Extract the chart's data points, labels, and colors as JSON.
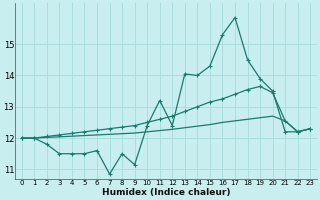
{
  "title": "",
  "xlabel": "Humidex (Indice chaleur)",
  "bg_color": "#c8eef0",
  "grid_color": "#aadddd",
  "line_color": "#1a7a6e",
  "xlim": [
    -0.5,
    23.5
  ],
  "ylim": [
    10.7,
    16.3
  ],
  "yticks": [
    11,
    12,
    13,
    14,
    15
  ],
  "xticks": [
    0,
    1,
    2,
    3,
    4,
    5,
    6,
    7,
    8,
    9,
    10,
    11,
    12,
    13,
    14,
    15,
    16,
    17,
    18,
    19,
    20,
    21,
    22,
    23
  ],
  "series1_x": [
    0,
    1,
    2,
    3,
    4,
    5,
    6,
    7,
    8,
    9,
    10,
    11,
    12,
    13,
    14,
    15,
    16,
    17,
    18,
    19,
    20,
    21,
    22,
    23
  ],
  "series1_y": [
    12.0,
    12.0,
    11.8,
    11.5,
    11.5,
    11.5,
    11.6,
    10.85,
    11.5,
    11.15,
    12.4,
    13.2,
    12.4,
    14.05,
    14.0,
    14.3,
    15.3,
    15.85,
    14.5,
    13.9,
    13.5,
    12.2,
    12.2,
    12.3
  ],
  "series2_x": [
    0,
    1,
    2,
    3,
    4,
    5,
    6,
    7,
    8,
    9,
    10,
    11,
    12,
    13,
    14,
    15,
    16,
    17,
    18,
    19,
    20,
    21,
    22,
    23
  ],
  "series2_y": [
    12.0,
    12.0,
    12.05,
    12.1,
    12.15,
    12.2,
    12.25,
    12.3,
    12.35,
    12.4,
    12.5,
    12.6,
    12.7,
    12.85,
    13.0,
    13.15,
    13.25,
    13.4,
    13.55,
    13.65,
    13.45,
    12.55,
    12.2,
    12.3
  ],
  "series3_x": [
    0,
    1,
    2,
    3,
    4,
    5,
    6,
    7,
    8,
    9,
    10,
    11,
    12,
    13,
    14,
    15,
    16,
    17,
    18,
    19,
    20,
    21,
    22,
    23
  ],
  "series3_y": [
    12.0,
    12.0,
    12.02,
    12.04,
    12.06,
    12.08,
    12.1,
    12.12,
    12.14,
    12.16,
    12.2,
    12.24,
    12.28,
    12.33,
    12.38,
    12.43,
    12.5,
    12.55,
    12.6,
    12.65,
    12.7,
    12.55,
    12.2,
    12.3
  ]
}
